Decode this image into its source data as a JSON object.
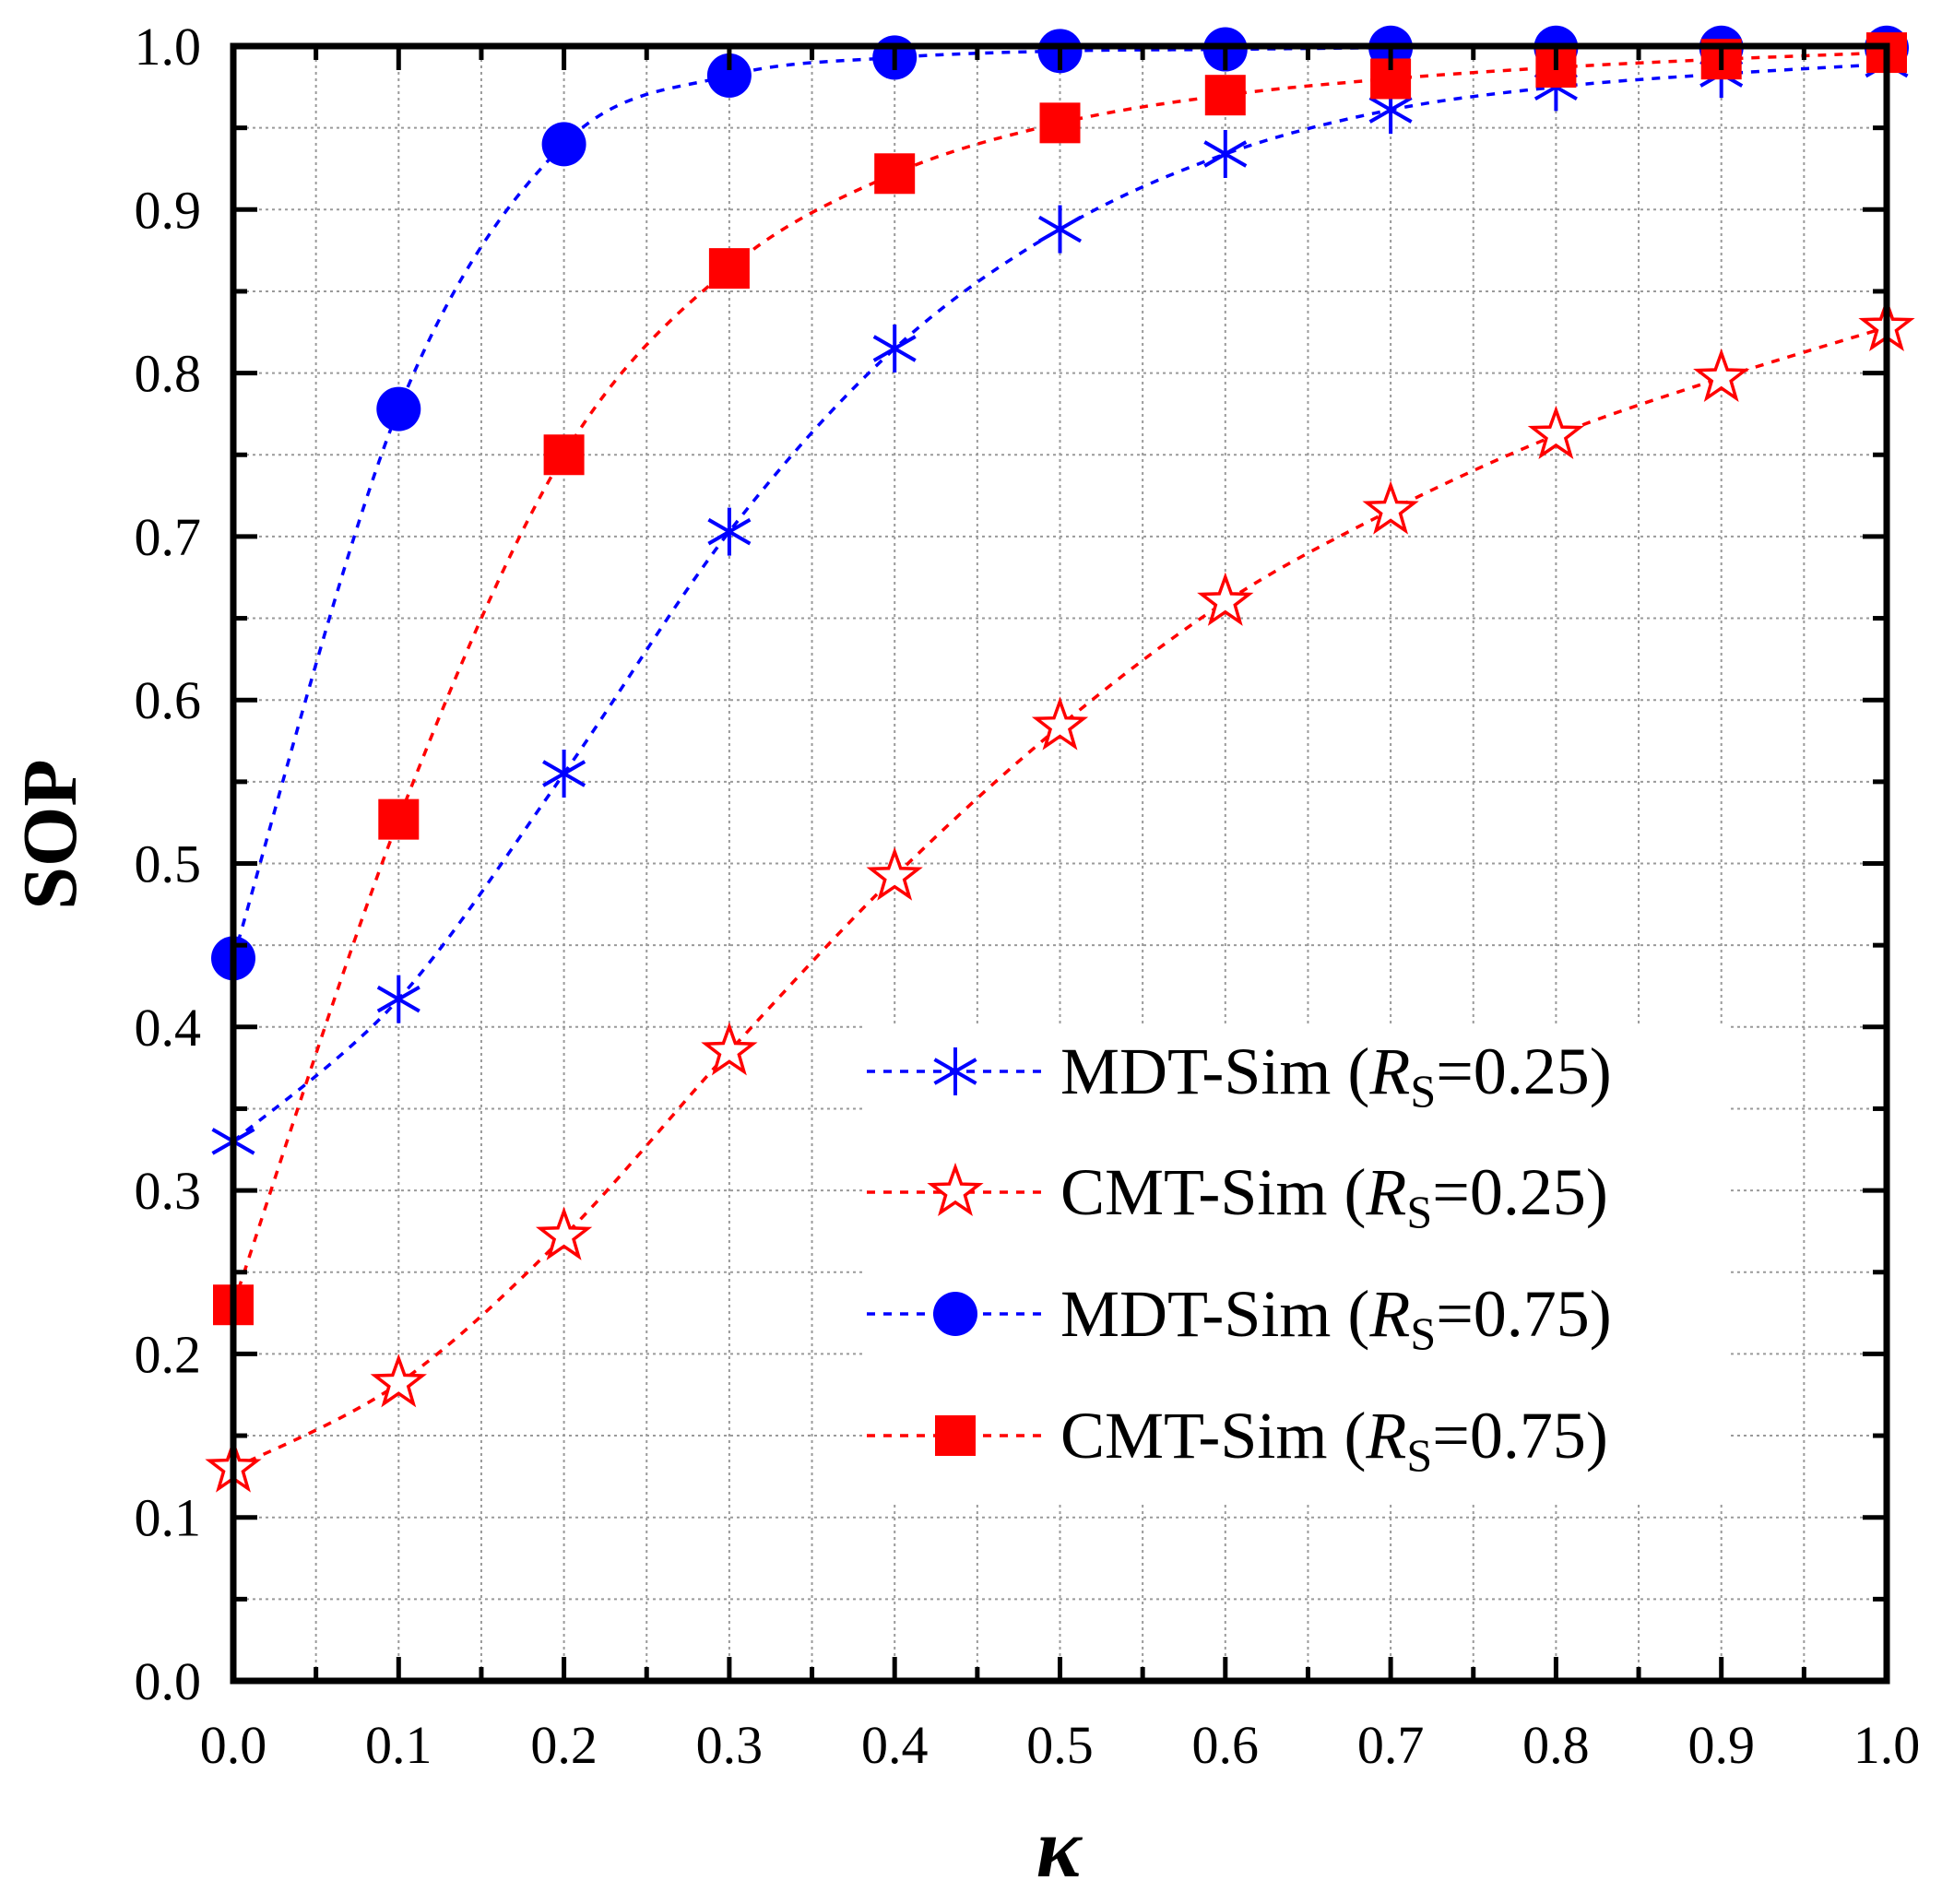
{
  "chart_data": {
    "type": "line",
    "title": "",
    "xlabel": "κ",
    "ylabel": "SOP",
    "xlim": [
      0.0,
      1.0
    ],
    "ylim": [
      0.0,
      1.0
    ],
    "grid": true,
    "legend_position": "lower-right",
    "x": [
      0.0,
      0.1,
      0.2,
      0.3,
      0.4,
      0.5,
      0.6,
      0.7,
      0.8,
      0.9,
      1.0
    ],
    "x_ticks": [
      "0.0",
      "0.1",
      "0.2",
      "0.3",
      "0.4",
      "0.5",
      "0.6",
      "0.7",
      "0.8",
      "0.9",
      "1.0"
    ],
    "y_ticks": [
      "0.0",
      "0.1",
      "0.2",
      "0.3",
      "0.4",
      "0.5",
      "0.6",
      "0.7",
      "0.8",
      "0.9",
      "1.0"
    ],
    "series": [
      {
        "name": "MDT-Sim (Rs=0.25)",
        "label_main": "MDT-Sim (",
        "label_var": "R",
        "label_sub": "S",
        "label_tail": "=0.25)",
        "color": "#0000ff",
        "marker": "asterisk",
        "values": [
          0.33,
          0.417,
          0.555,
          0.703,
          0.815,
          0.888,
          0.934,
          0.961,
          0.975,
          0.983,
          0.989
        ]
      },
      {
        "name": "CMT-Sim (Rs=0.25)",
        "label_main": "CMT-Sim (",
        "label_var": "R",
        "label_sub": "S",
        "label_tail": "=0.25)",
        "color": "#ff0000",
        "marker": "star-open",
        "values": [
          0.13,
          0.182,
          0.272,
          0.385,
          0.492,
          0.584,
          0.66,
          0.716,
          0.762,
          0.797,
          0.828
        ]
      },
      {
        "name": "MDT-Sim (Rs=0.75)",
        "label_main": "MDT-Sim (",
        "label_var": "R",
        "label_sub": "S",
        "label_tail": "=0.75)",
        "color": "#0000ff",
        "marker": "circle",
        "values": [
          0.442,
          0.778,
          0.94,
          0.982,
          0.993,
          0.997,
          0.998,
          0.999,
          0.999,
          0.999,
          0.999
        ]
      },
      {
        "name": "CMT-Sim (Rs=0.75)",
        "label_main": "CMT-Sim (",
        "label_var": "R",
        "label_sub": "S",
        "label_tail": "=0.75)",
        "color": "#ff0000",
        "marker": "square",
        "values": [
          0.23,
          0.527,
          0.75,
          0.864,
          0.922,
          0.953,
          0.97,
          0.98,
          0.987,
          0.992,
          0.996
        ]
      }
    ]
  }
}
